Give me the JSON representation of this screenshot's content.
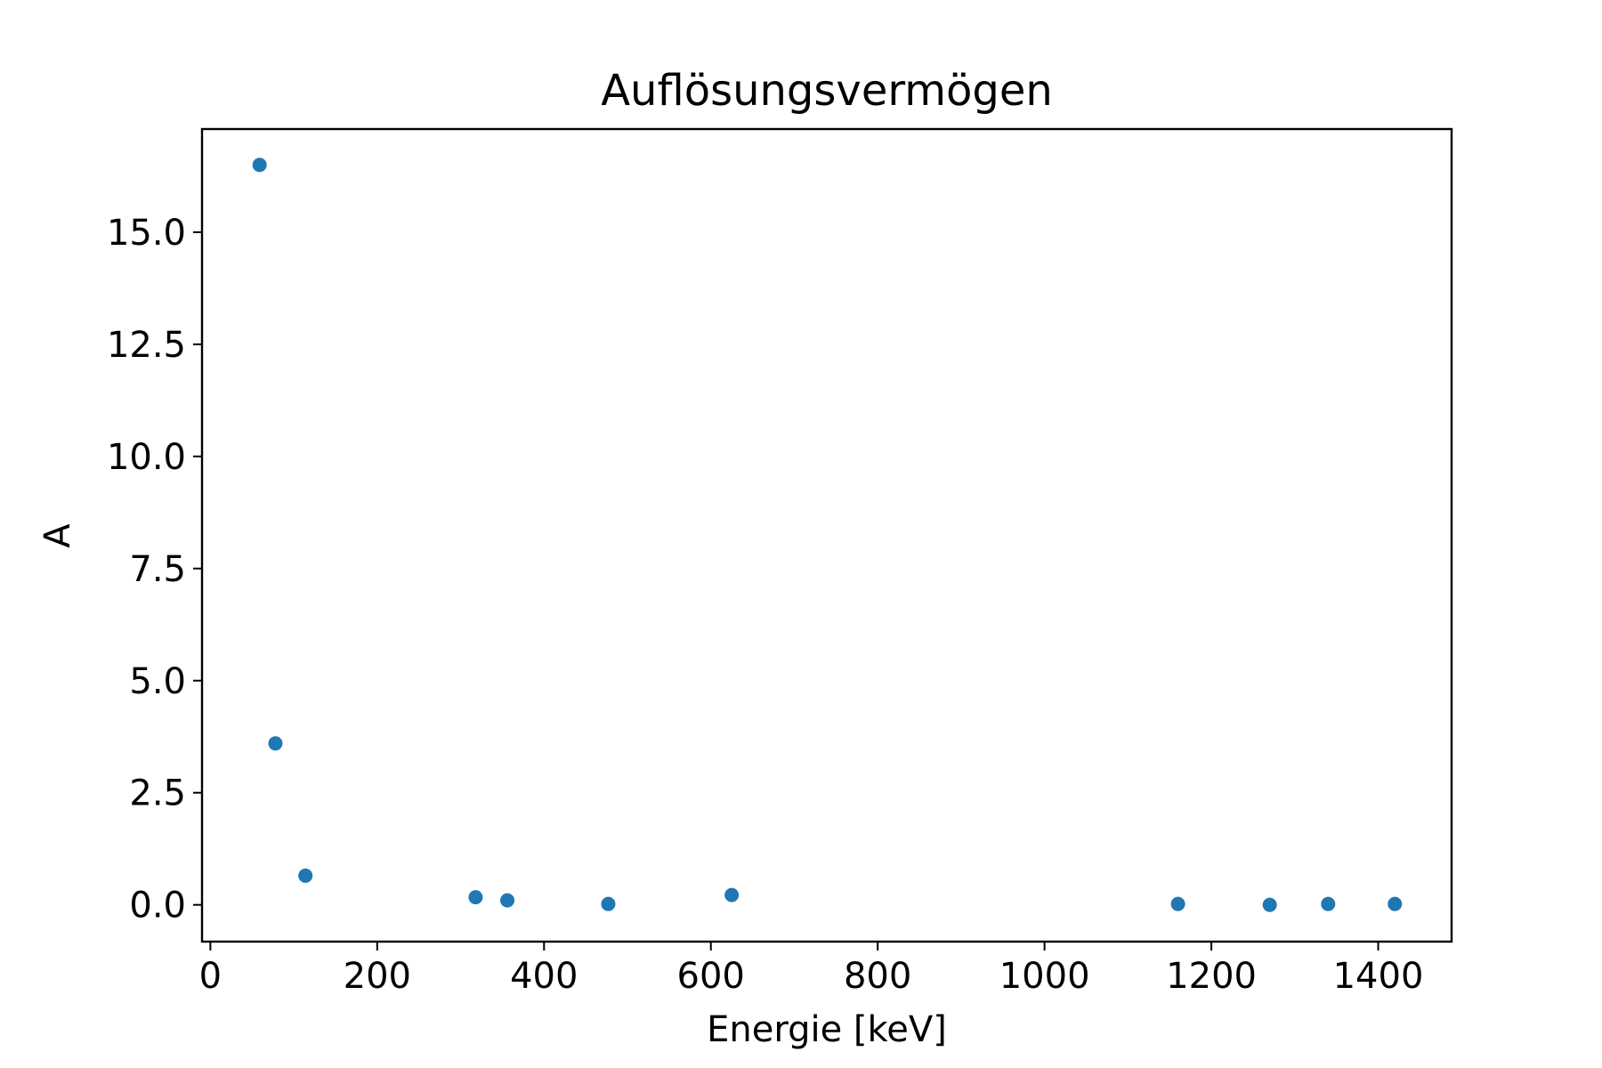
{
  "chart_data": {
    "type": "scatter",
    "title": "Auflösungsvermögen",
    "xlabel": "Energie [keV]",
    "ylabel": "A",
    "xlim": [
      -10,
      1488
    ],
    "ylim": [
      -0.82,
      17.3
    ],
    "xticks": [
      0,
      200,
      400,
      600,
      800,
      1000,
      1200,
      1400
    ],
    "xtick_labels": [
      "0",
      "200",
      "400",
      "600",
      "800",
      "1000",
      "1200",
      "1400"
    ],
    "yticks": [
      0.0,
      2.5,
      5.0,
      7.5,
      10.0,
      12.5,
      15.0
    ],
    "ytick_labels": [
      "0.0",
      "2.5",
      "5.0",
      "7.5",
      "10.0",
      "12.5",
      "15.0"
    ],
    "grid": false,
    "marker_color": "#1f77b4",
    "series": [
      {
        "x": [
          59,
          78,
          114,
          318,
          356,
          477,
          625,
          1160,
          1270,
          1340,
          1420
        ],
        "y": [
          16.5,
          3.6,
          0.65,
          0.17,
          0.1,
          0.02,
          0.22,
          0.02,
          0.0,
          0.02,
          0.02
        ]
      }
    ]
  }
}
